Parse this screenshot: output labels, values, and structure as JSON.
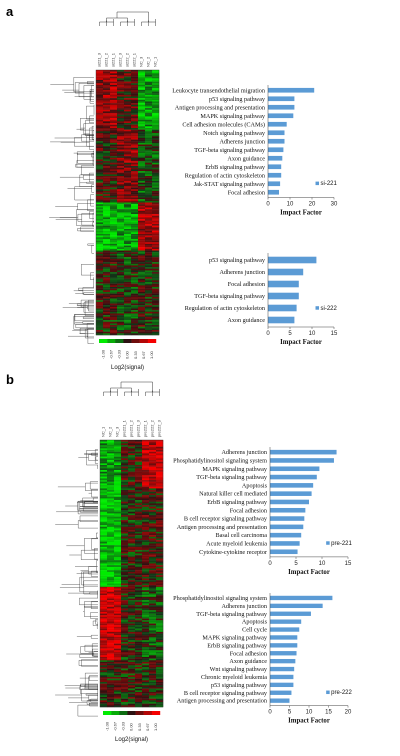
{
  "panels": [
    {
      "label": "a",
      "samples": [
        "si221_3",
        "si221_2",
        "si221_1",
        "si222_3",
        "si222_2",
        "si222_1",
        "NC_3",
        "NC_2",
        "NC_1"
      ],
      "scale": {
        "values": [
          "-1.00",
          "-0.67",
          "-0.33",
          "0.00",
          "0.33",
          "0.67",
          "1.00"
        ],
        "label": "Log2(signal)"
      }
    },
    {
      "label": "b",
      "samples": [
        "NC_1",
        "NC_2",
        "NC_3",
        "pre221_1",
        "pre221_2",
        "pre221_3",
        "pre222_1",
        "pre222_2",
        "pre222_3"
      ],
      "scale": {
        "values": [
          "-1.00",
          "-0.67",
          "-0.33",
          "0.00",
          "0.33",
          "0.67",
          "1.00"
        ],
        "label": "Log2(signal)"
      }
    }
  ],
  "chart_data": [
    {
      "type": "bar",
      "orientation": "horizontal",
      "series": [
        {
          "name": "si-221"
        }
      ],
      "xlabel": "Impact Factor",
      "xlim": [
        0,
        30
      ],
      "xticks": [
        "0",
        "10",
        "20",
        "30"
      ],
      "categories": [
        "Leukocyte transendothelial migration",
        "p53 signaling pathway",
        "Antigen processing and presentation",
        "MAPK signaling pathway",
        "Cell adhesion molecules (CAMs)",
        "Notch signaling pathway",
        "Adherens junction",
        "TGF-beta signaling pathway",
        "Axon guidance",
        "ErbB signaling pathway",
        "Regulation of actin cytoskeleton",
        "Jak-STAT signaling pathway",
        "Focal adhesion"
      ],
      "values": [
        21,
        12,
        12,
        11.5,
        8.5,
        7.5,
        7.5,
        7,
        6.5,
        6,
        6,
        5.5,
        5
      ],
      "color": "#5b9bd5"
    },
    {
      "type": "bar",
      "orientation": "horizontal",
      "series": [
        {
          "name": "si-222"
        }
      ],
      "xlabel": "Impact Factor",
      "xlim": [
        0,
        15
      ],
      "xticks": [
        "0",
        "5",
        "10",
        "15"
      ],
      "categories": [
        "p53 signaling pathway",
        "Adherens junction",
        "Focal adhesion",
        "TGF-beta signaling pathway",
        "Regulation of actin cytoskeleton",
        "Axon guidance"
      ],
      "values": [
        11,
        8,
        7,
        7,
        6.5,
        6
      ],
      "color": "#5b9bd5"
    },
    {
      "type": "bar",
      "orientation": "horizontal",
      "series": [
        {
          "name": "pre-221"
        }
      ],
      "xlabel": "Impact Factor",
      "xlim": [
        0,
        15
      ],
      "xticks": [
        "0",
        "5",
        "10",
        "15"
      ],
      "categories": [
        "Adherens junction",
        "Phosphatidylinositol signaling system",
        "MAPK signaling pathway",
        "TGF-beta signaling pathway",
        "Apoptosis",
        "Natural killer cell mediated",
        "ErbB signaling pathway",
        "Focal adhesion",
        "B cell receptor signaling pathway",
        "Antigen processing and presentation",
        "Basal cell carcinoma",
        "Acute myeloid leukemia",
        "Cytokine-cytokine receptor"
      ],
      "values": [
        12.8,
        12.3,
        9.5,
        9,
        8.3,
        8,
        7.5,
        6.8,
        6.6,
        6.4,
        6,
        5.7,
        5.3
      ],
      "color": "#5b9bd5"
    },
    {
      "type": "bar",
      "orientation": "horizontal",
      "series": [
        {
          "name": "pre-222"
        }
      ],
      "xlabel": "Impact Factor",
      "xlim": [
        0,
        20
      ],
      "xticks": [
        "0",
        "5",
        "10",
        "15",
        "20"
      ],
      "categories": [
        "Phosphatidylinositol signaling system",
        "Adherens junction",
        "TGF-beta signaling pathway",
        "Apoptosis",
        "Cell cycle",
        "MAPK signaling pathway",
        "ErbB signaling pathway",
        "Focal adhesion",
        "Axon guidance",
        "Wnt signaling pathway",
        "Chronic myeloid leukemia",
        "p53 signaling pathway",
        "B cell receptor signaling pathway",
        "Antigen processing and presentation"
      ],
      "values": [
        16,
        13.5,
        10.5,
        8,
        7.5,
        7,
        7,
        6.8,
        6.5,
        6.2,
        6,
        6,
        5.5,
        5
      ],
      "color": "#5b9bd5"
    }
  ]
}
